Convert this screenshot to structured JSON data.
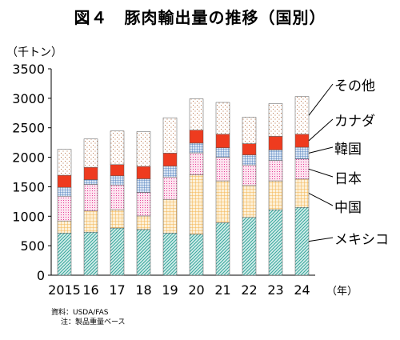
{
  "title": "図４　豚肉輸出量の推移（国別）",
  "unit_label": "（千トン）",
  "year_suffix": "（年）",
  "source": "資料：USDA/FAS",
  "note": "注：製品重量ベース",
  "chart_data": {
    "type": "bar",
    "stacked": true,
    "categories": [
      "2015",
      "16",
      "17",
      "18",
      "19",
      "20",
      "21",
      "22",
      "23",
      "24"
    ],
    "ylim": [
      0,
      3500
    ],
    "yticks": [
      0,
      500,
      1000,
      1500,
      2000,
      2500,
      3000,
      3500
    ],
    "ytick_labels": [
      "0",
      "500",
      "1000",
      "1500",
      "2000",
      "2500",
      "3000",
      "3500"
    ],
    "grid": false,
    "legend_placement": "right (labels beside the last bar)",
    "series": [
      {
        "name": "メキシコ",
        "color": "#3aa79d",
        "pattern": "diag",
        "values": [
          715,
          730,
          800,
          775,
          715,
          695,
          890,
          980,
          1110,
          1150
        ]
      },
      {
        "name": "中国",
        "color": "#f3b24f",
        "pattern": "grid",
        "values": [
          205,
          360,
          310,
          230,
          570,
          1010,
          710,
          540,
          490,
          480
        ]
      },
      {
        "name": "日本",
        "color": "#e43f97",
        "pattern": "dots",
        "values": [
          420,
          450,
          420,
          400,
          380,
          370,
          400,
          350,
          345,
          340
        ]
      },
      {
        "name": "韓国",
        "color": "#3f72b6",
        "pattern": "grid",
        "values": [
          150,
          80,
          155,
          230,
          185,
          165,
          160,
          170,
          180,
          200
        ]
      },
      {
        "name": "カナダ",
        "color": "#ee3b1f",
        "pattern": "solid",
        "values": [
          205,
          210,
          190,
          210,
          220,
          220,
          230,
          190,
          230,
          220
        ]
      },
      {
        "name": "その他",
        "color": "#d08a60",
        "pattern": "dots",
        "values": [
          440,
          480,
          570,
          590,
          600,
          530,
          540,
          450,
          555,
          640
        ]
      }
    ]
  }
}
